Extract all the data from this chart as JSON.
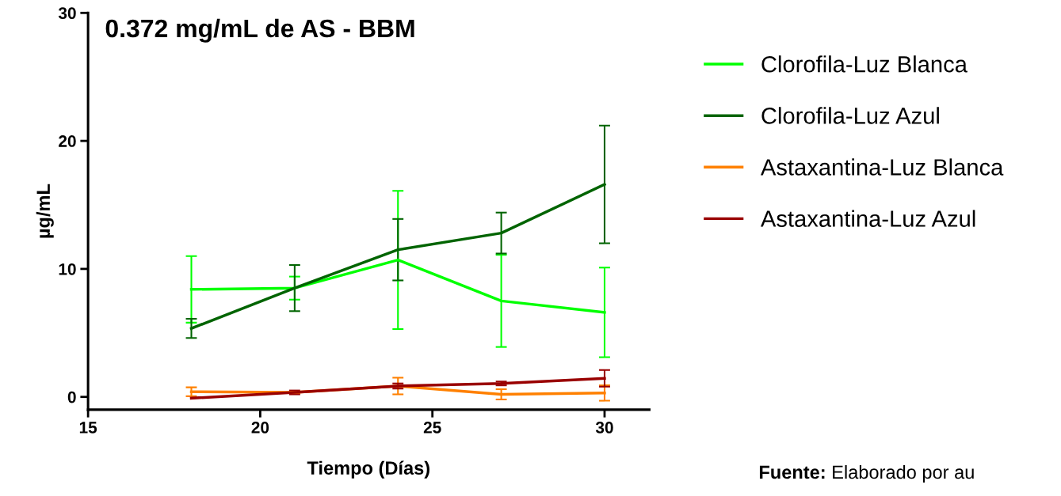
{
  "chart_data": {
    "type": "line",
    "title": "0.372 mg/mL de AS - BBM",
    "xlabel": "Tiempo (Días)",
    "ylabel": "µg/mL",
    "x": [
      18,
      21,
      24,
      27,
      30
    ],
    "xlim": [
      15,
      31.3
    ],
    "xticks": [
      15,
      20,
      25,
      30
    ],
    "ylim": [
      -1,
      30
    ],
    "yticks": [
      0,
      10,
      20,
      30
    ],
    "grid": false,
    "legend": "right",
    "marker": "none",
    "line_style": "solid",
    "series": [
      {
        "name": "Clorofila-Luz Blanca",
        "color": "#00ff00",
        "values": [
          8.4,
          8.5,
          10.7,
          7.5,
          6.6
        ],
        "errors": [
          2.6,
          0.9,
          5.4,
          3.6,
          3.5
        ]
      },
      {
        "name": "Clorofila-Luz Azul",
        "color": "#006400",
        "values": [
          5.35,
          8.5,
          11.5,
          12.8,
          16.6
        ],
        "errors": [
          0.75,
          1.8,
          2.4,
          1.6,
          4.6
        ]
      },
      {
        "name": "Astaxantina-Luz Blanca",
        "color": "#ff8000",
        "values": [
          0.4,
          0.35,
          0.85,
          0.2,
          0.3
        ],
        "errors": [
          0.35,
          0.1,
          0.65,
          0.4,
          0.6
        ]
      },
      {
        "name": "Astaxantina-Luz Azul",
        "color": "#990000",
        "values": [
          -0.1,
          0.35,
          0.85,
          1.05,
          1.45
        ],
        "errors": [
          null,
          0.15,
          0.2,
          0.15,
          0.65
        ]
      }
    ],
    "annotations": [
      "Fuente: Elaborado por au"
    ]
  }
}
